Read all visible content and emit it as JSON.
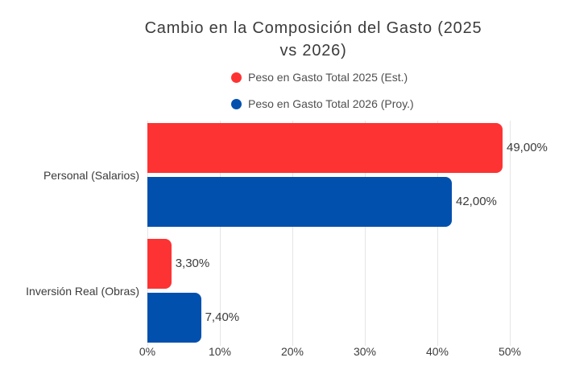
{
  "chart_data": {
    "type": "bar",
    "orientation": "horizontal",
    "title": "Cambio en la Composición del Gasto (2025 vs 2026)",
    "title_lines": [
      "Cambio en la Composición del Gasto (2025",
      "vs 2026)"
    ],
    "categories": [
      "Personal (Salarios)",
      "Inversión Real (Obras)"
    ],
    "series": [
      {
        "name": "Peso en Gasto Total 2025 (Est.)",
        "color": "#fd3333",
        "values": [
          49.0,
          3.3
        ],
        "value_labels": [
          "49,00%",
          "3,30%"
        ]
      },
      {
        "name": "Peso en Gasto Total 2026 (Proy.)",
        "color": "#0250ae",
        "values": [
          42.0,
          7.4
        ],
        "value_labels": [
          "42,00%",
          "7,40%"
        ]
      }
    ],
    "x_ticks": [
      "0%",
      "10%",
      "20%",
      "30%",
      "40%",
      "50%"
    ],
    "xlim": [
      0,
      50
    ],
    "grid": true,
    "legend_position": "top"
  }
}
